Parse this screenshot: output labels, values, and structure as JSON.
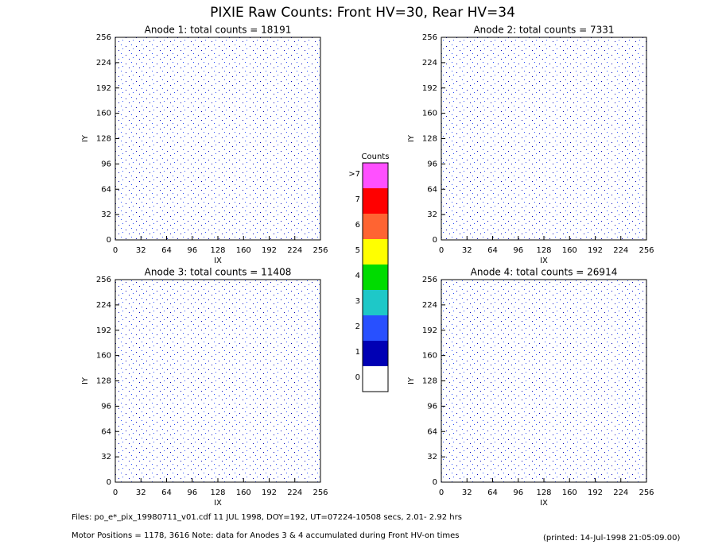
{
  "title": "PIXIE Raw Counts:  Front HV=30, Rear HV=34",
  "chart_data": [
    {
      "type": "heatmap",
      "title": "Anode 1: total counts = 18191",
      "x_label": "IX",
      "y_label": "IY",
      "xlim": [
        0,
        256
      ],
      "ylim": [
        0,
        256
      ],
      "xticks": [
        0,
        32,
        64,
        96,
        128,
        160,
        192,
        224,
        256
      ],
      "yticks": [
        0,
        32,
        64,
        96,
        128,
        160,
        192,
        224,
        256
      ]
    },
    {
      "type": "heatmap",
      "title": "Anode 2: total counts = 7331",
      "x_label": "IX",
      "y_label": "IY",
      "xlim": [
        0,
        256
      ],
      "ylim": [
        0,
        256
      ],
      "xticks": [
        0,
        32,
        64,
        96,
        128,
        160,
        192,
        224,
        256
      ],
      "yticks": [
        0,
        32,
        64,
        96,
        128,
        160,
        192,
        224,
        256
      ]
    },
    {
      "type": "heatmap",
      "title": "Anode 3: total counts = 11408",
      "x_label": "IX",
      "y_label": "IY",
      "xlim": [
        0,
        256
      ],
      "ylim": [
        0,
        256
      ],
      "xticks": [
        0,
        32,
        64,
        96,
        128,
        160,
        192,
        224,
        256
      ],
      "yticks": [
        0,
        32,
        64,
        96,
        128,
        160,
        192,
        224,
        256
      ]
    },
    {
      "type": "heatmap",
      "title": "Anode 4: total counts = 26914",
      "x_label": "IX",
      "y_label": "IY",
      "xlim": [
        0,
        256
      ],
      "ylim": [
        0,
        256
      ],
      "xticks": [
        0,
        32,
        64,
        96,
        128,
        160,
        192,
        224,
        256
      ],
      "yticks": [
        0,
        32,
        64,
        96,
        128,
        160,
        192,
        224,
        256
      ]
    }
  ],
  "colorbar": {
    "title": "Counts",
    "categories": [
      "0",
      "1",
      "2",
      "3",
      "4",
      "5",
      "6",
      "7",
      ">7"
    ],
    "colors": [
      "#ffffff",
      "#0000b4",
      "#2850ff",
      "#1ec8c8",
      "#00dc00",
      "#ffff00",
      "#ff6432",
      "#ff0000",
      "#ff50ff"
    ]
  },
  "footer": {
    "files": "Files: po_e*_pix_19980711_v01.cdf    11 JUL 1998, DOY=192, UT=07224-10508 secs,  2.01- 2.92 hrs",
    "motor": "Motor Positions = 1178, 3616   Note: data for Anodes 3 & 4 accumulated during Front HV-on times",
    "printed": "(printed: 14-Jul-1998 21:05:09.00)"
  }
}
